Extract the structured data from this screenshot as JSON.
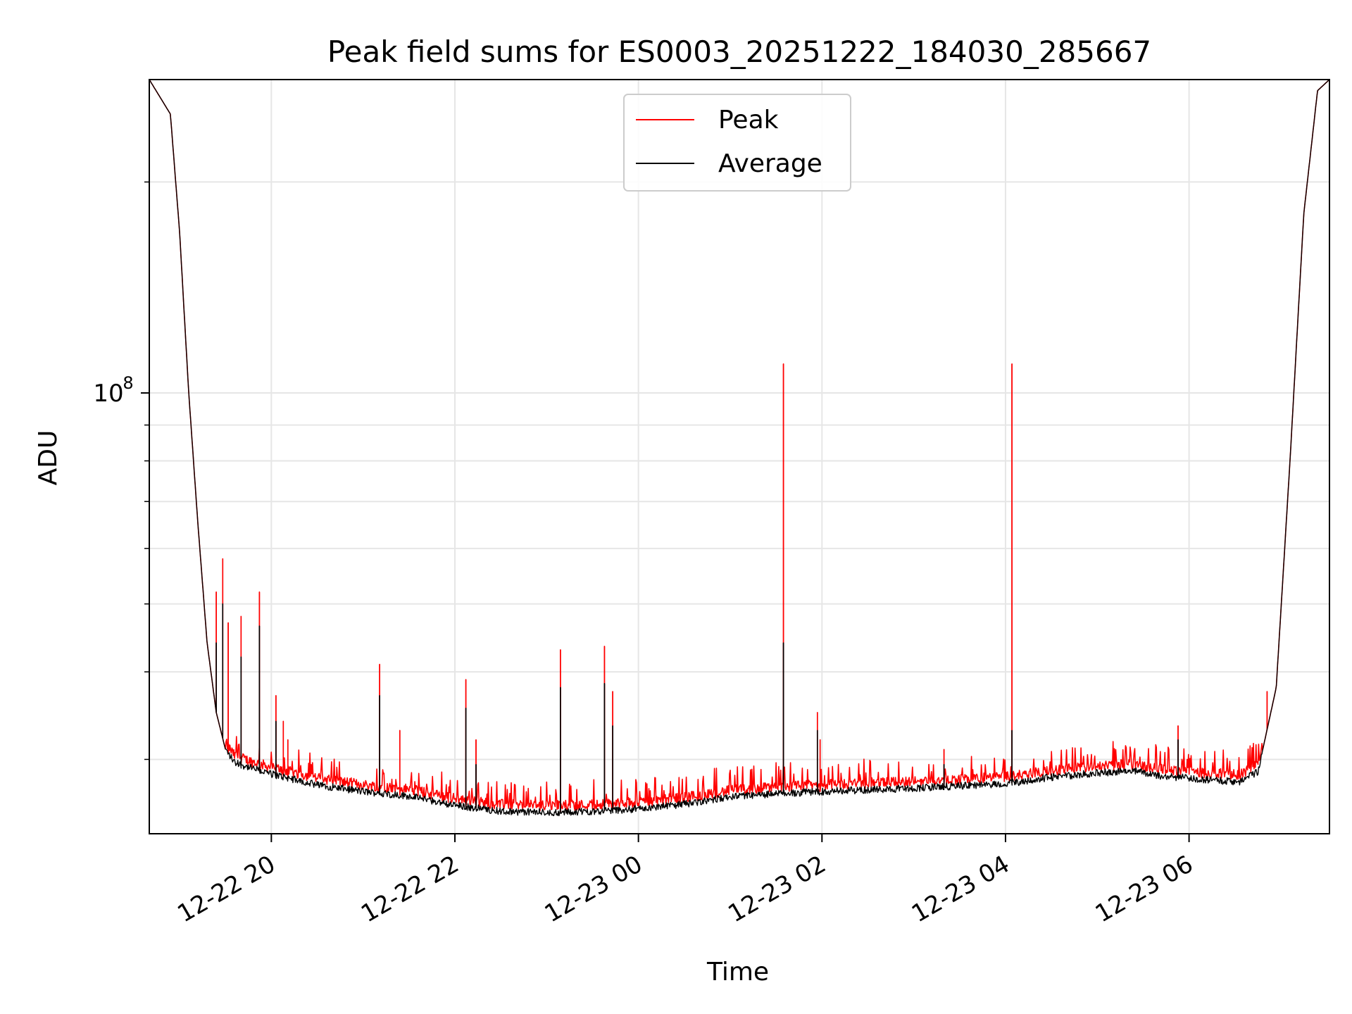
{
  "chart_data": {
    "type": "line",
    "title": "Peak field sums for ES0003_20251222_184030_285667",
    "xlabel": "Time",
    "ylabel": "ADU",
    "yscale": "log",
    "xlim_hours": [
      18.67,
      31.53
    ],
    "ylim": [
      23500000,
      280000000
    ],
    "grid": true,
    "legend_position": "upper center",
    "x_ticks": [
      {
        "hour": 20,
        "label": "12-22 20"
      },
      {
        "hour": 22,
        "label": "12-22 22"
      },
      {
        "hour": 24,
        "label": "12-23 00"
      },
      {
        "hour": 26,
        "label": "12-23 02"
      },
      {
        "hour": 28,
        "label": "12-23 04"
      },
      {
        "hour": 30,
        "label": "12-23 06"
      }
    ],
    "y_major_ticks": [
      {
        "value": 100000000,
        "label_base": "10",
        "label_exp": "8"
      }
    ],
    "y_minor_ticks": [
      30000000,
      40000000,
      50000000,
      60000000,
      70000000,
      80000000,
      90000000,
      200000000
    ],
    "series": [
      {
        "name": "Peak",
        "color": "#ff0000",
        "spikes": [
          {
            "hour": 19.4,
            "value": 52000000
          },
          {
            "hour": 19.47,
            "value": 58000000
          },
          {
            "hour": 19.53,
            "value": 47000000
          },
          {
            "hour": 19.67,
            "value": 48000000
          },
          {
            "hour": 19.87,
            "value": 52000000
          },
          {
            "hour": 20.05,
            "value": 37000000
          },
          {
            "hour": 20.13,
            "value": 34000000
          },
          {
            "hour": 20.18,
            "value": 32000000
          },
          {
            "hour": 21.18,
            "value": 41000000
          },
          {
            "hour": 21.4,
            "value": 33000000
          },
          {
            "hour": 22.12,
            "value": 39000000
          },
          {
            "hour": 22.23,
            "value": 32000000
          },
          {
            "hour": 23.15,
            "value": 43000000
          },
          {
            "hour": 23.63,
            "value": 43500000
          },
          {
            "hour": 23.72,
            "value": 37500000
          },
          {
            "hour": 25.58,
            "value": 110000000
          },
          {
            "hour": 25.95,
            "value": 35000000
          },
          {
            "hour": 25.98,
            "value": 32000000
          },
          {
            "hour": 27.33,
            "value": 31000000
          },
          {
            "hour": 28.07,
            "value": 110000000
          },
          {
            "hour": 29.88,
            "value": 33500000
          },
          {
            "hour": 30.85,
            "value": 37500000
          }
        ]
      },
      {
        "name": "Average",
        "color": "#000000",
        "baseline": [
          {
            "hour": 18.67,
            "value": 280000000
          },
          {
            "hour": 18.9,
            "value": 250000000
          },
          {
            "hour": 19.0,
            "value": 170000000
          },
          {
            "hour": 19.1,
            "value": 100000000
          },
          {
            "hour": 19.2,
            "value": 65000000
          },
          {
            "hour": 19.3,
            "value": 44000000
          },
          {
            "hour": 19.4,
            "value": 35000000
          },
          {
            "hour": 19.5,
            "value": 31000000
          },
          {
            "hour": 19.6,
            "value": 29700000
          },
          {
            "hour": 19.8,
            "value": 29100000
          },
          {
            "hour": 20.0,
            "value": 28600000
          },
          {
            "hour": 20.5,
            "value": 27600000
          },
          {
            "hour": 21.0,
            "value": 27000000
          },
          {
            "hour": 21.5,
            "value": 26600000
          },
          {
            "hour": 22.0,
            "value": 25800000
          },
          {
            "hour": 22.5,
            "value": 25300000
          },
          {
            "hour": 23.0,
            "value": 25200000
          },
          {
            "hour": 23.5,
            "value": 25300000
          },
          {
            "hour": 24.0,
            "value": 25500000
          },
          {
            "hour": 24.5,
            "value": 25900000
          },
          {
            "hour": 25.0,
            "value": 26500000
          },
          {
            "hour": 25.5,
            "value": 26800000
          },
          {
            "hour": 26.0,
            "value": 27000000
          },
          {
            "hour": 27.0,
            "value": 27300000
          },
          {
            "hour": 28.0,
            "value": 27700000
          },
          {
            "hour": 28.5,
            "value": 28300000
          },
          {
            "hour": 29.0,
            "value": 28700000
          },
          {
            "hour": 29.4,
            "value": 28900000
          },
          {
            "hour": 29.7,
            "value": 28400000
          },
          {
            "hour": 30.0,
            "value": 28200000
          },
          {
            "hour": 30.3,
            "value": 28000000
          },
          {
            "hour": 30.55,
            "value": 27900000
          },
          {
            "hour": 30.75,
            "value": 28800000
          },
          {
            "hour": 30.95,
            "value": 38000000
          },
          {
            "hour": 31.1,
            "value": 80000000
          },
          {
            "hour": 31.25,
            "value": 180000000
          },
          {
            "hour": 31.4,
            "value": 270000000
          },
          {
            "hour": 31.53,
            "value": 280000000
          }
        ],
        "spikes": [
          {
            "hour": 19.4,
            "value": 44000000
          },
          {
            "hour": 19.47,
            "value": 50000000
          },
          {
            "hour": 19.67,
            "value": 42000000
          },
          {
            "hour": 19.87,
            "value": 46500000
          },
          {
            "hour": 20.05,
            "value": 34000000
          },
          {
            "hour": 21.18,
            "value": 37000000
          },
          {
            "hour": 22.12,
            "value": 35500000
          },
          {
            "hour": 22.23,
            "value": 29500000
          },
          {
            "hour": 23.15,
            "value": 38000000
          },
          {
            "hour": 23.63,
            "value": 38500000
          },
          {
            "hour": 23.72,
            "value": 33500000
          },
          {
            "hour": 25.58,
            "value": 44000000
          },
          {
            "hour": 25.95,
            "value": 33000000
          },
          {
            "hour": 27.33,
            "value": 29500000
          },
          {
            "hour": 28.07,
            "value": 33000000
          },
          {
            "hour": 29.88,
            "value": 32000000
          }
        ]
      }
    ]
  }
}
